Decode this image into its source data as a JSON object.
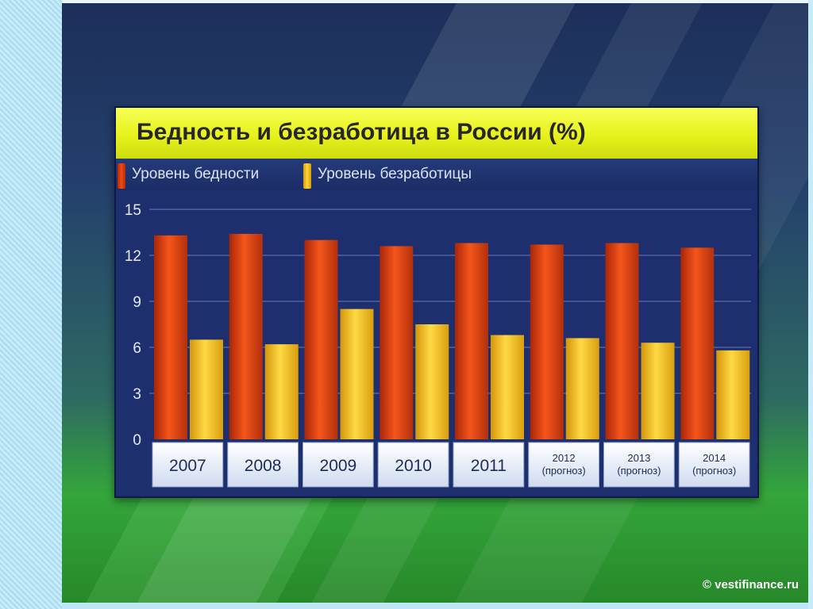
{
  "chart_data": {
    "type": "bar",
    "title": "Бедность и безработица в России (%)",
    "categories": [
      [
        "2007"
      ],
      [
        "2008"
      ],
      [
        "2009"
      ],
      [
        "2010"
      ],
      [
        "2011"
      ],
      [
        "2012",
        "(прогноз)"
      ],
      [
        "2013",
        "(прогноз)"
      ],
      [
        "2014",
        "(прогноз)"
      ]
    ],
    "series": [
      {
        "name": "Уровень бедности",
        "values": [
          13.3,
          13.4,
          13.0,
          12.6,
          12.8,
          12.7,
          12.8,
          12.5
        ]
      },
      {
        "name": "Уровень безработицы",
        "values": [
          6.5,
          6.2,
          8.5,
          7.5,
          6.8,
          6.6,
          6.3,
          5.8
        ]
      }
    ],
    "yticks": [
      0,
      3,
      6,
      9,
      12,
      15
    ],
    "ylim": [
      0,
      15
    ],
    "grid": true,
    "legend_position": "top-left",
    "colors": {
      "series": [
        "#f04a14",
        "#ffc21c"
      ]
    }
  },
  "watermark": "© vestifinance.ru"
}
